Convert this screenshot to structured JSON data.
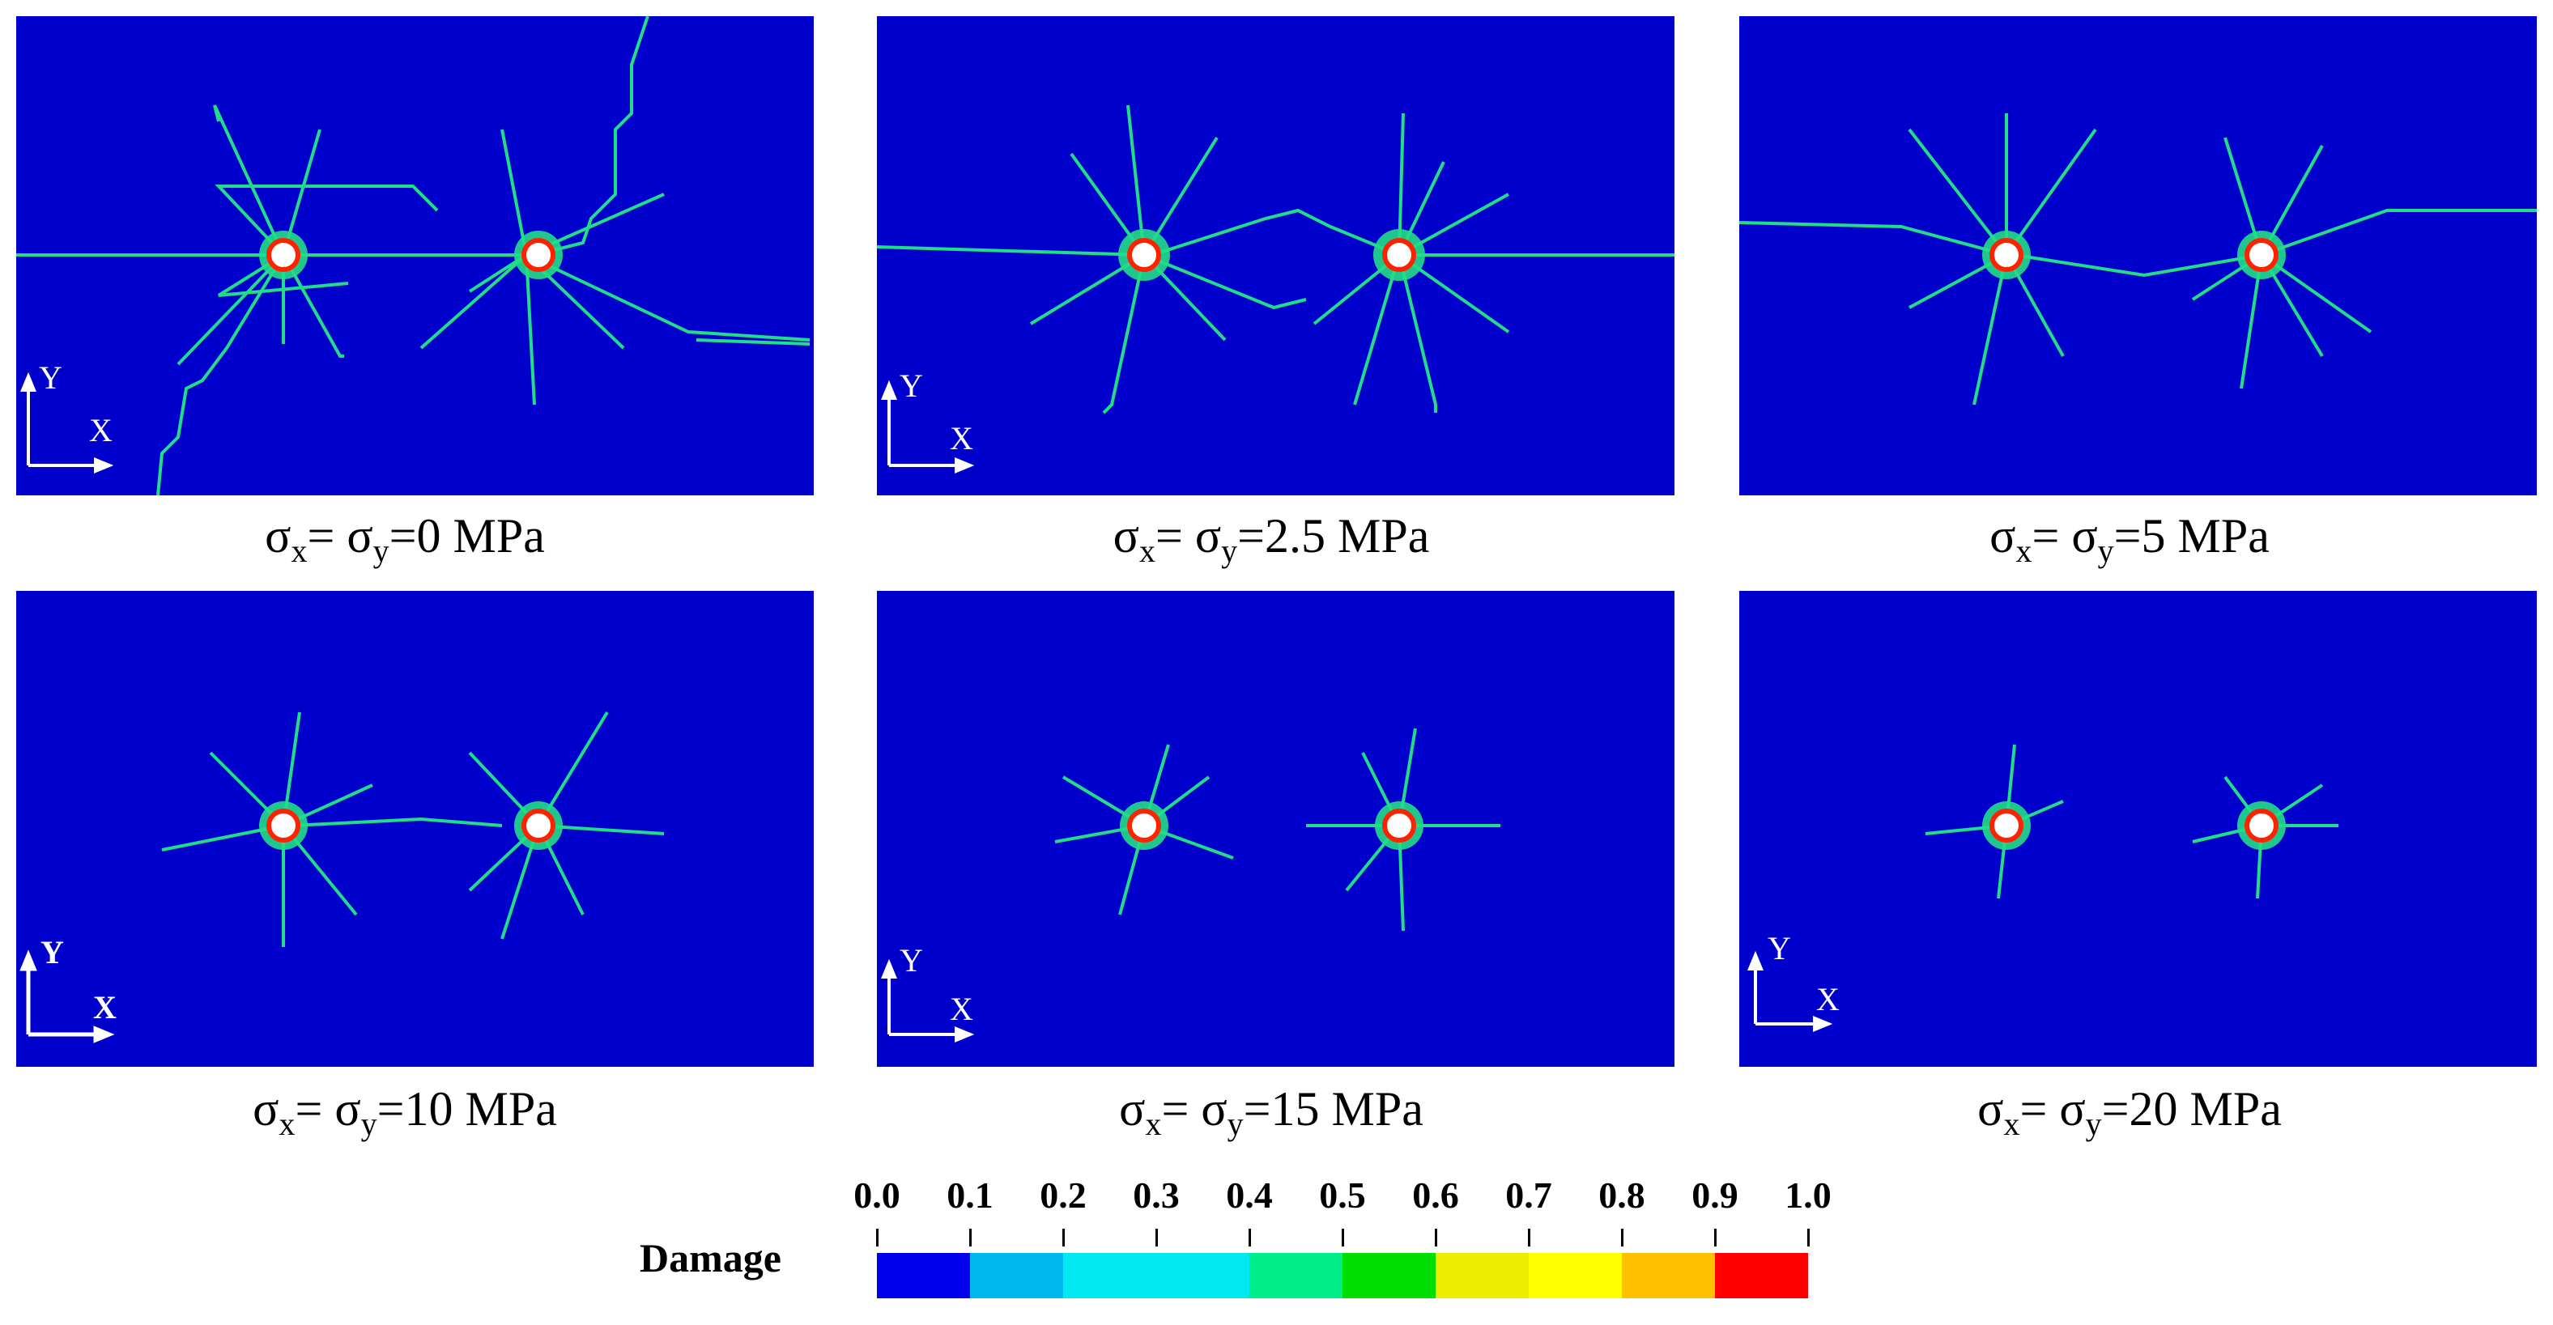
{
  "panels": [
    {
      "caption": {
        "s1": "σ",
        "sub1": "x",
        "mid": "= σ",
        "sub2": "y",
        "rest": "=0 MPa"
      },
      "axis": {
        "y": "Y",
        "x": "X"
      }
    },
    {
      "caption": {
        "s1": "σ",
        "sub1": "x",
        "mid": "= σ",
        "sub2": "y",
        "rest": "=2.5 MPa"
      },
      "axis": {
        "y": "Y",
        "x": "X"
      }
    },
    {
      "caption": {
        "s1": "σ",
        "sub1": "x",
        "mid": "= σ",
        "sub2": "y",
        "rest": "=5 MPa"
      },
      "axis": {
        "y": "Y",
        "x": "X"
      }
    },
    {
      "caption": {
        "s1": "σ",
        "sub1": "x",
        "mid": "= σ",
        "sub2": "y",
        "rest": "=10 MPa"
      },
      "axis": {
        "y": "Y",
        "x": "X"
      }
    },
    {
      "caption": {
        "s1": "σ",
        "sub1": "x",
        "mid": "= σ",
        "sub2": "y",
        "rest": "=15 MPa"
      },
      "axis": {
        "y": "Y",
        "x": "X"
      }
    },
    {
      "caption": {
        "s1": "σ",
        "sub1": "x",
        "mid": "= σ",
        "sub2": "y",
        "rest": "=20 MPa"
      },
      "axis": {
        "y": "Y",
        "x": "X"
      }
    }
  ],
  "legend": {
    "title": "Damage",
    "ticks": [
      "0.0",
      "0.1",
      "0.2",
      "0.3",
      "0.4",
      "0.5",
      "0.6",
      "0.7",
      "0.8",
      "0.9",
      "1.0"
    ],
    "colors": [
      "#0000ee",
      "#00b8f0",
      "#00e8f0",
      "#00e8f0",
      "#00ee88",
      "#00dd00",
      "#eeee00",
      "#ffff00",
      "#ffc000",
      "#ff0000"
    ]
  },
  "colors": {
    "background": "#0000cc",
    "crack": "#22dd88",
    "hole_ring": "#ff2200",
    "hole_fill": "#ffffff",
    "axis": "#ffffff"
  }
}
